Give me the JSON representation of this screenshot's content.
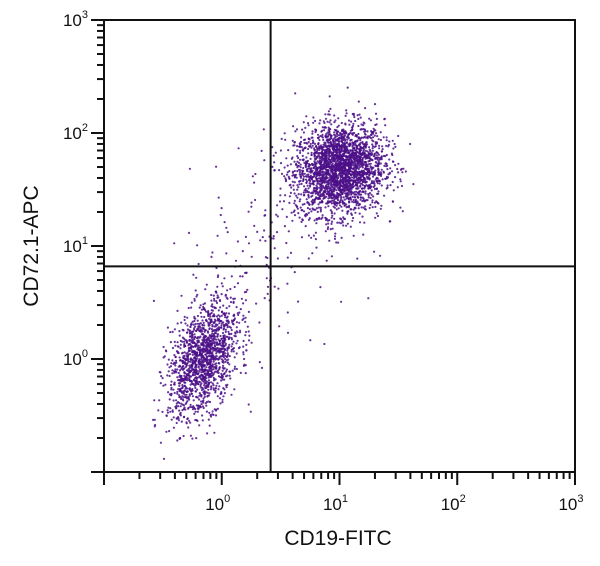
{
  "chart_data": {
    "type": "scatter",
    "title": "",
    "xlabel": "CD19-FITC",
    "ylabel": "CD72.1-APC",
    "xscale": "log",
    "yscale": "log",
    "xlim": [
      0.1,
      1000
    ],
    "ylim": [
      0.1,
      1000
    ],
    "x_ticks": [
      {
        "base": "10",
        "exp": "0",
        "value": 1
      },
      {
        "base": "10",
        "exp": "1",
        "value": 10
      },
      {
        "base": "10",
        "exp": "2",
        "value": 100
      },
      {
        "base": "10",
        "exp": "3",
        "value": 1000
      }
    ],
    "y_ticks": [
      {
        "base": "10",
        "exp": "0",
        "value": 1
      },
      {
        "base": "10",
        "exp": "1",
        "value": 10
      },
      {
        "base": "10",
        "exp": "2",
        "value": 100
      },
      {
        "base": "10",
        "exp": "3",
        "value": 1000
      }
    ],
    "quadrant_gates": {
      "x": 2.6,
      "y": 6.6
    },
    "grid": false,
    "legend": "none",
    "point_color": "#4b0f87",
    "populations": [
      {
        "center": [
          10,
          48
        ],
        "log_sd": [
          0.19,
          0.2
        ],
        "correlation": 0.1,
        "count": 2600
      },
      {
        "center": [
          0.7,
          1.0
        ],
        "log_sd": [
          0.15,
          0.26
        ],
        "correlation": 0.45,
        "count": 1500
      },
      {
        "center": [
          2.5,
          8
        ],
        "log_sd": [
          0.45,
          0.45
        ],
        "correlation": 0.5,
        "count": 160
      }
    ]
  }
}
